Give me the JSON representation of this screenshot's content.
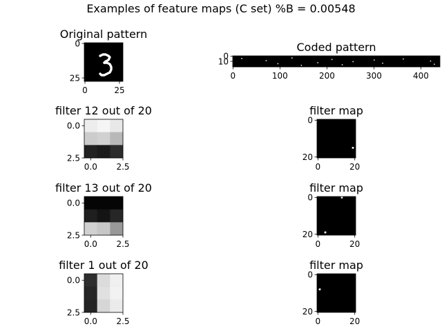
{
  "figure": {
    "title": "Examples of feature maps (C set) %B = 0.00548"
  },
  "chart_data": [
    {
      "type": "heatmap",
      "id": "original",
      "title": "Original pattern",
      "xlim": [
        -0.5,
        27.5
      ],
      "ylim": [
        27.5,
        -0.5
      ],
      "xticks": [
        0,
        25
      ],
      "yticks": [
        0,
        25
      ],
      "xtick_labels": [
        "0",
        "25"
      ],
      "ytick_labels": [
        "0",
        "25"
      ],
      "content": "handwritten digit 3, white strokes on black",
      "strokes": [
        [
          [
            11,
            9
          ],
          [
            13,
            8
          ],
          [
            15,
            8
          ],
          [
            17,
            9
          ],
          [
            18,
            10
          ],
          [
            17,
            12
          ],
          [
            15,
            13
          ],
          [
            14,
            14
          ]
        ],
        [
          [
            14,
            14
          ],
          [
            16,
            14
          ],
          [
            18,
            15
          ],
          [
            19,
            17
          ],
          [
            19,
            19
          ],
          [
            18,
            21
          ],
          [
            16,
            22
          ],
          [
            14,
            23
          ],
          [
            12,
            23
          ],
          [
            11,
            22
          ]
        ]
      ]
    },
    {
      "type": "heatmap",
      "id": "coded",
      "title": "Coded pattern",
      "xlim": [
        -0.5,
        440.5
      ],
      "ylim": [
        20.5,
        -0.5
      ],
      "xticks": [
        0,
        100,
        200,
        300,
        400
      ],
      "yticks": [
        0,
        10
      ],
      "xtick_labels": [
        "0",
        "100",
        "200",
        "300",
        "400"
      ],
      "ytick_labels": [
        "0",
        "10"
      ],
      "points": [
        [
          18,
          4
        ],
        [
          70,
          8
        ],
        [
          125,
          3
        ],
        [
          180,
          12
        ],
        [
          210,
          6
        ],
        [
          232,
          16
        ],
        [
          255,
          10
        ],
        [
          300,
          7
        ],
        [
          318,
          13
        ],
        [
          362,
          5
        ],
        [
          420,
          9
        ],
        [
          428,
          15
        ],
        [
          145,
          17
        ],
        [
          95,
          14
        ]
      ]
    },
    {
      "type": "heatmap",
      "id": "filter12",
      "title": "filter 12 out of 20",
      "xlim": [
        -0.5,
        2.5
      ],
      "ylim": [
        2.5,
        -0.5
      ],
      "xticks": [
        0.0,
        2.5
      ],
      "yticks": [
        0.0,
        2.5
      ],
      "xtick_labels": [
        "0.0",
        "2.5"
      ],
      "ytick_labels": [
        "0.0",
        "2.5"
      ],
      "values": [
        [
          0.93,
          0.96,
          0.91
        ],
        [
          0.8,
          0.82,
          0.72
        ],
        [
          0.13,
          0.1,
          0.17
        ]
      ]
    },
    {
      "type": "heatmap",
      "id": "map12",
      "title": "filter map",
      "xlim": [
        -0.5,
        20.5
      ],
      "ylim": [
        20.5,
        -0.5
      ],
      "xticks": [
        0,
        20
      ],
      "yticks": [
        0,
        20
      ],
      "xtick_labels": [
        "0",
        "20"
      ],
      "ytick_labels": [
        "0",
        "20"
      ],
      "points": [
        [
          19,
          15
        ]
      ]
    },
    {
      "type": "heatmap",
      "id": "filter13",
      "title": "filter 13 out of 20",
      "xlim": [
        -0.5,
        2.5
      ],
      "ylim": [
        2.5,
        -0.5
      ],
      "xticks": [
        0.0,
        2.5
      ],
      "yticks": [
        0.0,
        2.5
      ],
      "xtick_labels": [
        "0.0",
        "2.5"
      ],
      "ytick_labels": [
        "0.0",
        "2.5"
      ],
      "values": [
        [
          0.02,
          0.02,
          0.02
        ],
        [
          0.12,
          0.08,
          0.15
        ],
        [
          0.82,
          0.78,
          0.6
        ]
      ]
    },
    {
      "type": "heatmap",
      "id": "map13",
      "title": "filter map",
      "xlim": [
        -0.5,
        20.5
      ],
      "ylim": [
        20.5,
        -0.5
      ],
      "xticks": [
        0,
        20
      ],
      "yticks": [
        0,
        20
      ],
      "xtick_labels": [
        "0",
        "20"
      ],
      "ytick_labels": [
        "0",
        "20"
      ],
      "points": [
        [
          4,
          19
        ],
        [
          13,
          0
        ]
      ]
    },
    {
      "type": "heatmap",
      "id": "filter1",
      "title": "filter 1 out of 20",
      "xlim": [
        -0.5,
        2.5
      ],
      "ylim": [
        2.5,
        -0.5
      ],
      "xticks": [
        0.0,
        2.5
      ],
      "yticks": [
        0.0,
        2.5
      ],
      "xtick_labels": [
        "0.0",
        "2.5"
      ],
      "ytick_labels": [
        "0.0",
        "2.5"
      ],
      "values": [
        [
          0.18,
          0.86,
          0.94
        ],
        [
          0.15,
          0.88,
          0.95
        ],
        [
          0.14,
          0.84,
          0.92
        ]
      ]
    },
    {
      "type": "heatmap",
      "id": "map1",
      "title": "filter map",
      "xlim": [
        -0.5,
        20.5
      ],
      "ylim": [
        20.5,
        -0.5
      ],
      "xticks": [
        0,
        20
      ],
      "yticks": [
        0,
        20
      ],
      "xtick_labels": [
        "0",
        "20"
      ],
      "ytick_labels": [
        "0",
        "20"
      ],
      "points": [
        [
          1,
          8
        ]
      ]
    }
  ]
}
